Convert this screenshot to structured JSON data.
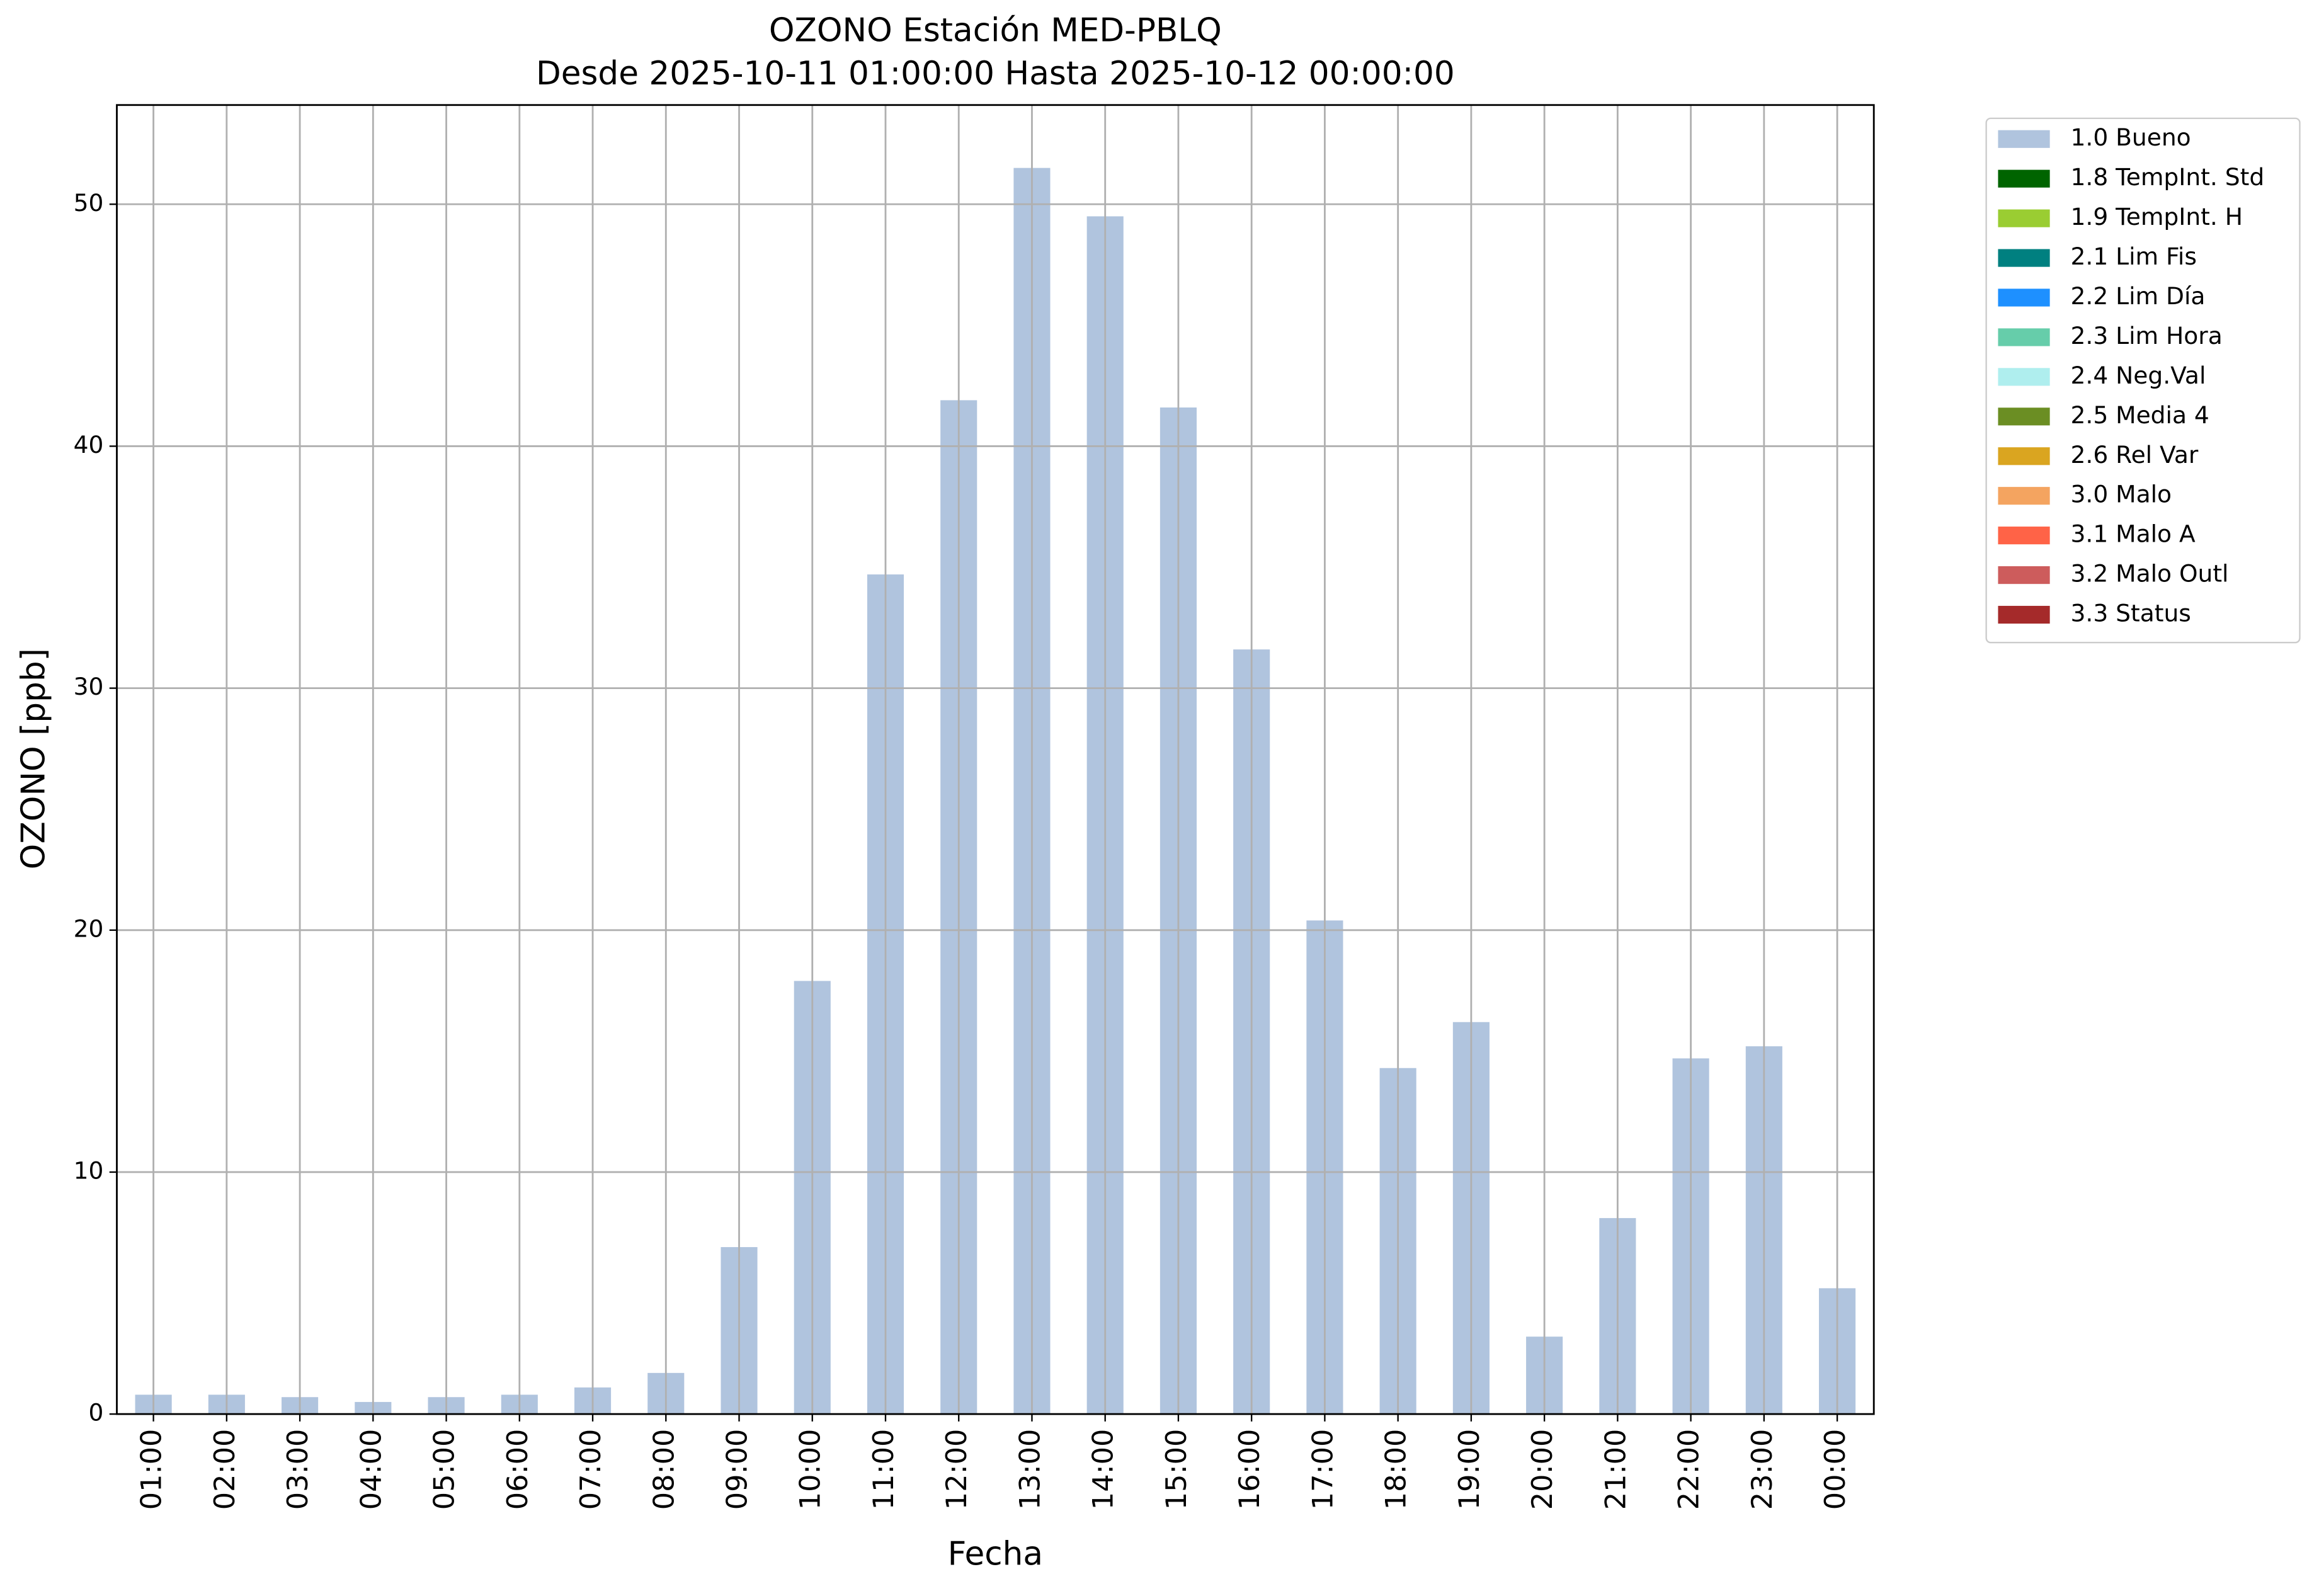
{
  "chart_data": {
    "type": "bar",
    "title": "OZONO Estación MED-PBLQ",
    "subtitle": "Desde 2025-10-11 01:00:00 Hasta 2025-10-12 00:00:00",
    "x_label": "Fecha",
    "y_label": "OZONO [ppb]",
    "categories": [
      "01:00",
      "02:00",
      "03:00",
      "04:00",
      "05:00",
      "06:00",
      "07:00",
      "08:00",
      "09:00",
      "10:00",
      "11:00",
      "12:00",
      "13:00",
      "14:00",
      "15:00",
      "16:00",
      "17:00",
      "18:00",
      "19:00",
      "20:00",
      "21:00",
      "22:00",
      "23:00",
      "00:00"
    ],
    "series": [
      {
        "name": "1.0 Bueno",
        "color": "#b0c4de",
        "values": [
          0.8,
          0.8,
          0.7,
          0.5,
          0.7,
          0.8,
          1.1,
          1.7,
          6.9,
          17.9,
          34.7,
          41.9,
          51.5,
          49.5,
          41.6,
          31.6,
          20.4,
          14.3,
          16.2,
          3.2,
          8.1,
          14.7,
          15.2,
          5.2
        ]
      },
      {
        "name": "1.8 TempInt. Std",
        "color": "#006400"
      },
      {
        "name": "1.9 TempInt. H",
        "color": "#9acd32"
      },
      {
        "name": "2.1 Lim Fis",
        "color": "#008080"
      },
      {
        "name": "2.2 Lim Día",
        "color": "#1e90ff"
      },
      {
        "name": "2.3 Lim Hora",
        "color": "#66cdaa"
      },
      {
        "name": "2.4 Neg.Val",
        "color": "#afeeee"
      },
      {
        "name": "2.5 Media 4",
        "color": "#6b8e23"
      },
      {
        "name": "2.6 Rel Var",
        "color": "#daa520"
      },
      {
        "name": "3.0 Malo",
        "color": "#f4a460"
      },
      {
        "name": "3.1 Malo A",
        "color": "#ff6347"
      },
      {
        "name": "3.2 Malo Outl",
        "color": "#cd5c5c"
      },
      {
        "name": "3.3 Status",
        "color": "#a52a2a"
      }
    ],
    "ylim": [
      0,
      54.1
    ],
    "yticks": [
      0,
      10,
      20,
      30,
      40,
      50
    ],
    "grid": true,
    "legend": "outside-upper-right"
  }
}
